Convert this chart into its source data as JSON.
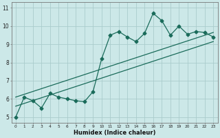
{
  "title": "",
  "xlabel": "Humidex (Indice chaleur)",
  "xlim": [
    -0.5,
    23.5
  ],
  "ylim": [
    4.7,
    11.3
  ],
  "xticks": [
    0,
    1,
    2,
    3,
    4,
    5,
    6,
    7,
    8,
    9,
    10,
    11,
    12,
    13,
    14,
    15,
    16,
    17,
    18,
    19,
    20,
    21,
    22,
    23
  ],
  "yticks": [
    5,
    6,
    7,
    8,
    9,
    10,
    11
  ],
  "bg_color": "#cce8e8",
  "line_color": "#1a6b5a",
  "grid_color": "#aacccc",
  "data_x": [
    0,
    1,
    2,
    3,
    4,
    5,
    6,
    7,
    8,
    9,
    10,
    11,
    12,
    13,
    14,
    15,
    16,
    17,
    18,
    19,
    20,
    21,
    22,
    23
  ],
  "data_y": [
    5.0,
    6.1,
    5.9,
    5.5,
    6.3,
    6.1,
    6.0,
    5.9,
    5.85,
    6.4,
    8.2,
    9.5,
    9.7,
    9.4,
    9.15,
    9.6,
    10.7,
    10.3,
    9.5,
    10.0,
    9.55,
    9.7,
    9.65,
    9.4
  ],
  "trend1_x": [
    0,
    23
  ],
  "trend1_y": [
    5.6,
    9.15
  ],
  "trend2_x": [
    0,
    23
  ],
  "trend2_y": [
    6.1,
    9.65
  ],
  "marker_size": 2.5,
  "line_width": 0.9
}
